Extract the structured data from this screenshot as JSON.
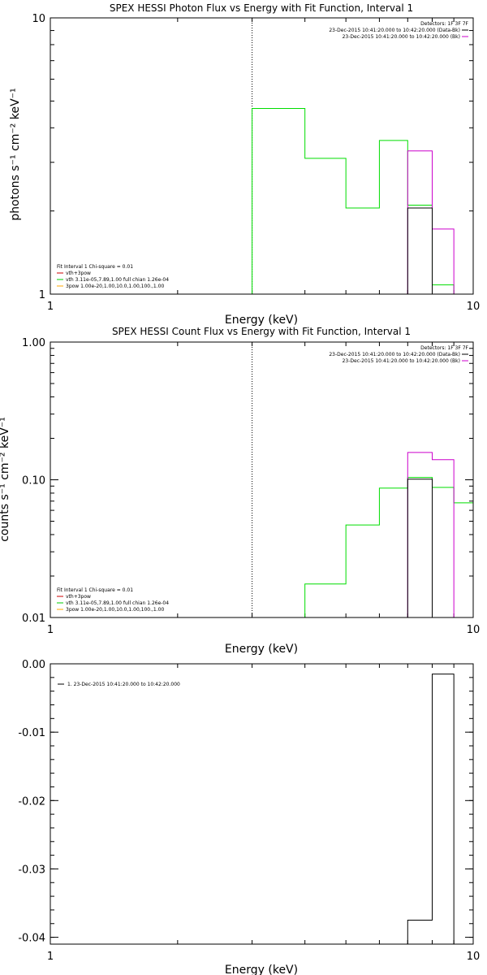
{
  "chart_data": [
    {
      "type": "line",
      "step": true,
      "title": "SPEX HESSI Photon Flux vs Energy with Fit Function, Interval 1",
      "xlabel": "Energy (keV)",
      "ylabel": "photons s⁻¹ cm⁻² keV⁻¹",
      "xscale": "log",
      "yscale": "log",
      "xlim": [
        1,
        10
      ],
      "ylim": [
        1,
        10
      ],
      "xticks": [
        {
          "v": 1,
          "label": "1"
        },
        {
          "v": 10,
          "label": "10"
        }
      ],
      "yticks": [
        {
          "v": 1,
          "label": "1"
        },
        {
          "v": 10,
          "label": "10"
        }
      ],
      "vline": 3.0,
      "top_legend": {
        "header": "Detectors: 1F 3F 7F",
        "entries": [
          {
            "text": "23-Dec-2015 10:41:20.000 to 10:42:20.000 (Data-Bk)",
            "color": "#000000"
          },
          {
            "text": "23-Dec-2015 10:41:20.000 to 10:42:20.000 (Bk)",
            "color": "#cc00cc"
          }
        ]
      },
      "bottom_legend": {
        "header": "Fit Interval  1    Chi-square = 0.01",
        "entries": [
          {
            "text": "vth+3pow",
            "color": "#cc0000"
          },
          {
            "text": "vth 3.11e-05,7.89,1.00  full chian 1.26e-04",
            "color": "#00cc00"
          },
          {
            "text": "3pow 1.00e-20,1.00,10.0,1.00,100.,1.00",
            "color": "#ffaa00"
          }
        ]
      },
      "series": [
        {
          "color": "#00dd00",
          "edges": [
            3.0,
            4.0,
            5.0,
            6.0,
            7.0,
            8.0,
            9.0
          ],
          "values": [
            4.7,
            3.1,
            2.05,
            3.6,
            2.1,
            1.08
          ]
        },
        {
          "color": "#cc00cc",
          "edges": [
            7.0,
            8.0,
            9.0
          ],
          "values": [
            3.3,
            1.72
          ]
        },
        {
          "color": "#000000",
          "edges": [
            7.0,
            8.0
          ],
          "values": [
            2.05
          ]
        }
      ]
    },
    {
      "type": "line",
      "step": true,
      "title": "SPEX HESSI Count Flux vs Energy with Fit Function, Interval 1",
      "xlabel": "Energy (keV)",
      "ylabel": "counts s⁻¹ cm⁻² keV⁻¹",
      "xscale": "log",
      "yscale": "log",
      "xlim": [
        1,
        10
      ],
      "ylim": [
        0.01,
        1.0
      ],
      "xticks": [
        {
          "v": 1,
          "label": "1"
        },
        {
          "v": 10,
          "label": "10"
        }
      ],
      "yticks": [
        {
          "v": 0.01,
          "label": "0.01"
        },
        {
          "v": 0.1,
          "label": "0.10"
        },
        {
          "v": 1.0,
          "label": "1.00"
        }
      ],
      "vline": 3.0,
      "top_legend": {
        "header": "Detectors: 1F 3F 7F",
        "entries": [
          {
            "text": "23-Dec-2015 10:41:20.000 to 10:42:20.000 (Data-Bk)",
            "color": "#000000"
          },
          {
            "text": "23-Dec-2015 10:41:20.000 to 10:42:20.000 (Bk)",
            "color": "#cc00cc"
          }
        ]
      },
      "bottom_legend": {
        "header": "Fit Interval  1    Chi-square = 0.01",
        "entries": [
          {
            "text": "vth+3pow",
            "color": "#cc0000"
          },
          {
            "text": "vth 3.11e-05,7.89,1.00  full chian 1.26e-04",
            "color": "#00cc00"
          },
          {
            "text": "3pow 1.00e-20,1.00,10.0,1.00,100.,1.00",
            "color": "#ffaa00"
          }
        ]
      },
      "series": [
        {
          "color": "#00dd00",
          "edges": [
            4.0,
            5.0,
            6.0,
            7.0,
            8.0,
            9.0,
            10.0
          ],
          "values": [
            0.0175,
            0.047,
            0.087,
            0.104,
            0.088,
            0.068
          ]
        },
        {
          "color": "#cc00cc",
          "edges": [
            7.0,
            8.0,
            9.0
          ],
          "values": [
            0.158,
            0.14
          ]
        },
        {
          "color": "#000000",
          "edges": [
            7.0,
            8.0
          ],
          "values": [
            0.101
          ]
        }
      ]
    },
    {
      "type": "line",
      "step": true,
      "title": "",
      "xlabel": "Energy (keV)",
      "ylabel": "",
      "xscale": "log",
      "yscale": "linear",
      "xlim": [
        1,
        10
      ],
      "ylim": [
        -0.041,
        0.0
      ],
      "xticks": [
        {
          "v": 1,
          "label": "1"
        },
        {
          "v": 10,
          "label": "10"
        }
      ],
      "yticks": [
        {
          "v": 0.0,
          "label": "0.00"
        },
        {
          "v": -0.01,
          "label": "-0.01"
        },
        {
          "v": -0.02,
          "label": "-0.02"
        },
        {
          "v": -0.03,
          "label": "-0.03"
        },
        {
          "v": -0.04,
          "label": "-0.04"
        }
      ],
      "yminor_step": 0.002,
      "top_legend": {
        "header": "",
        "align": "left",
        "entries": [
          {
            "text": "1. 23-Dec-2015 10:41:20.000 to 10:42:20.000",
            "color": "#000000"
          }
        ]
      },
      "series": [
        {
          "color": "#000000",
          "edges": [
            7.0,
            8.0,
            9.0
          ],
          "values": [
            -0.0375,
            -0.0015
          ]
        }
      ]
    }
  ]
}
